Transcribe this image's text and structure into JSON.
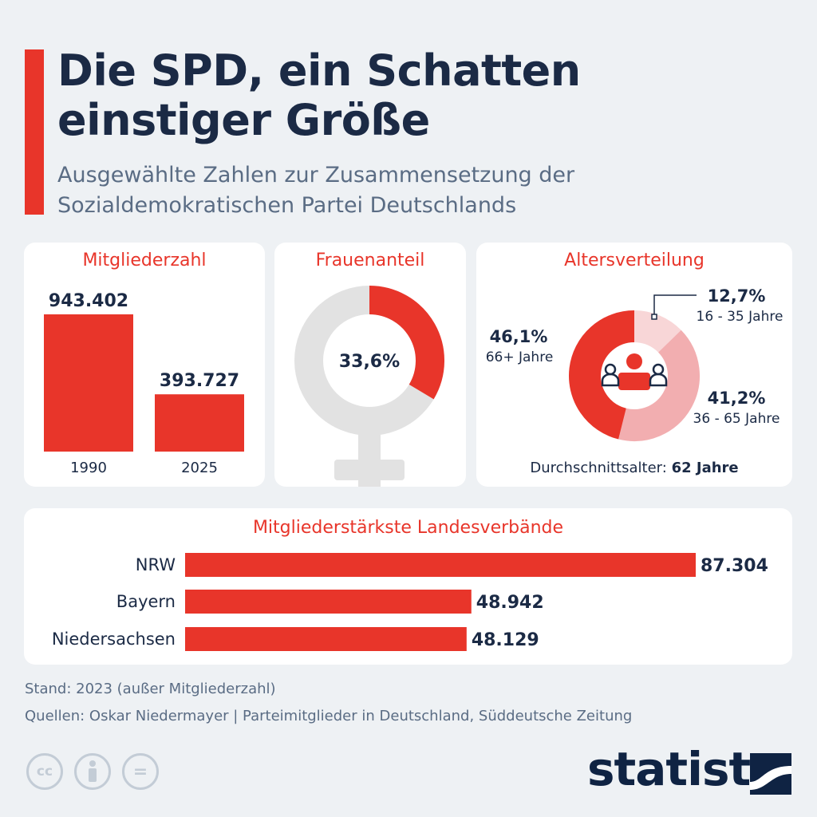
{
  "title": "Die SPD, ein Schatten einstiger Größe",
  "subtitle": "Ausgewählte Zahlen zur Zusammensetzung der Sozialdemokratischen Partei Deutschlands",
  "colors": {
    "accent": "#e8352a",
    "dark": "#1b2a45",
    "light_red": "#f2aeb0",
    "lighter_red": "#f8d6d7",
    "grey": "#e2e2e2"
  },
  "chart_data": [
    {
      "type": "bar",
      "title": "Mitgliederzahl",
      "categories": [
        "1990",
        "2025"
      ],
      "values": [
        943402,
        393727
      ],
      "value_labels": [
        "943.402",
        "393.727"
      ]
    },
    {
      "type": "pie",
      "title": "Frauenanteil",
      "values": [
        33.6,
        66.4
      ],
      "center_label": "33,6%",
      "icon": "female-symbol"
    },
    {
      "type": "pie",
      "title": "Altersverteilung",
      "categories": [
        "16 - 35 Jahre",
        "36 - 65 Jahre",
        "66+ Jahre"
      ],
      "values": [
        12.7,
        41.2,
        46.1
      ],
      "value_labels": [
        "12,7%",
        "41,2%",
        "46,1%"
      ],
      "icon": "people-icon",
      "note_label": "Durchschnittsalter:",
      "note_value": "62 Jahre"
    },
    {
      "type": "bar",
      "orientation": "horizontal",
      "title": "Mitgliederstärkste Landesverbände",
      "categories": [
        "NRW",
        "Bayern",
        "Niedersachsen"
      ],
      "values": [
        87304,
        48942,
        48129
      ],
      "value_labels": [
        "87.304",
        "48.942",
        "48.129"
      ]
    }
  ],
  "footer": {
    "stand": "Stand: 2023 (außer Mitgliederzahl)",
    "sources": "Quellen: Oskar Niedermayer | Parteimitglieder in Deutschland, Süddeutsche Zeitung",
    "license_icons": [
      "cc-icon",
      "by-icon",
      "nd-icon"
    ],
    "logo": "statista"
  }
}
